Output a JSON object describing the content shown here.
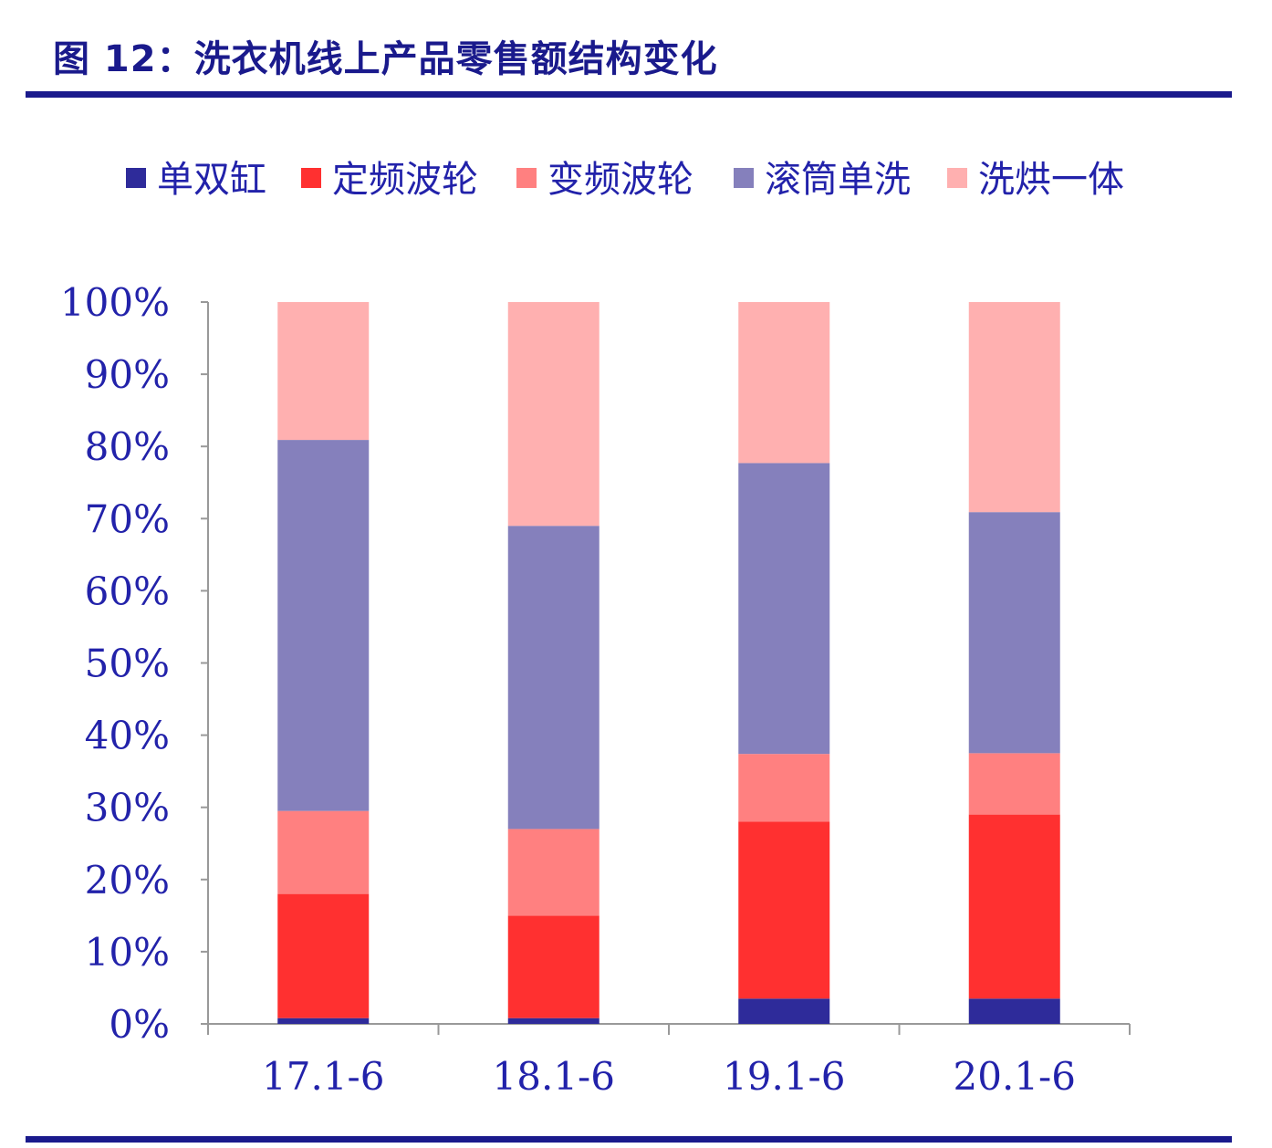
{
  "figure": {
    "title": "图  12：洗衣机线上产品零售额结构变化"
  },
  "chart_data": {
    "type": "bar",
    "stacked": true,
    "categories": [
      "17.1-6",
      "18.1-6",
      "19.1-6",
      "20.1-6"
    ],
    "series": [
      {
        "name": "单双缸",
        "color": "#2e2b9a",
        "values": [
          0.8,
          0.8,
          3.5,
          3.5
        ]
      },
      {
        "name": "定频波轮",
        "color": "#ff3030",
        "values": [
          17.2,
          14.2,
          24.5,
          25.5
        ]
      },
      {
        "name": "变频波轮",
        "color": "#ff8080",
        "values": [
          11.5,
          12.0,
          9.4,
          8.5
        ]
      },
      {
        "name": "滚筒单洗",
        "color": "#8580bc",
        "values": [
          51.4,
          42.0,
          40.3,
          33.4
        ]
      },
      {
        "name": "洗烘一体",
        "color": "#ffb0b0",
        "values": [
          19.1,
          31.0,
          22.3,
          29.1
        ]
      }
    ],
    "ylim": [
      0,
      100
    ],
    "yticks": [
      "0%",
      "10%",
      "20%",
      "30%",
      "40%",
      "50%",
      "60%",
      "70%",
      "80%",
      "90%",
      "100%"
    ],
    "legend_position": "top",
    "grid": false
  },
  "style": {
    "axis_text_color": "#2222aa",
    "axis_line_color": "#999999"
  }
}
